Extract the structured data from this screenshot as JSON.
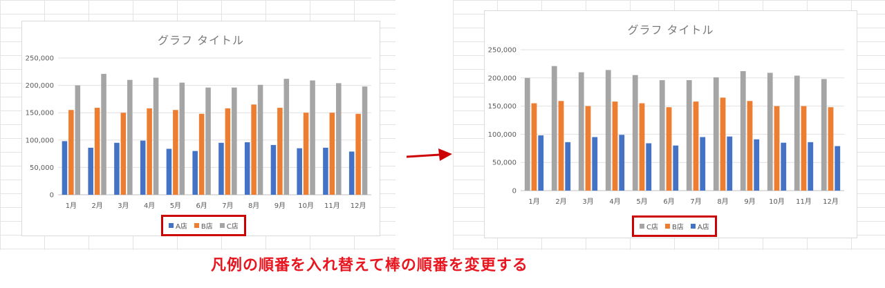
{
  "caption": "凡例の順番を入れ替えて棒の順番を変更する",
  "colors": {
    "a": "#4472c4",
    "b": "#ed7d31",
    "c": "#a5a5a5",
    "highlight": "#cc0000",
    "arrow": "#cc0000"
  },
  "chart_data": [
    {
      "type": "bar",
      "title": "グラフ タイトル",
      "categories": [
        "1月",
        "2月",
        "3月",
        "4月",
        "5月",
        "6月",
        "7月",
        "8月",
        "9月",
        "10月",
        "11月",
        "12月"
      ],
      "series": [
        {
          "name": "A店",
          "color": "#4472c4",
          "values": [
            98000,
            86000,
            95000,
            99000,
            84000,
            80000,
            95000,
            96000,
            91000,
            85000,
            86000,
            79000
          ]
        },
        {
          "name": "B店",
          "color": "#ed7d31",
          "values": [
            155000,
            159000,
            150000,
            158000,
            155000,
            148000,
            158000,
            165000,
            159000,
            150000,
            150000,
            148000
          ]
        },
        {
          "name": "C店",
          "color": "#a5a5a5",
          "values": [
            200000,
            221000,
            210000,
            214000,
            205000,
            196000,
            196000,
            201000,
            212000,
            209000,
            204000,
            198000
          ]
        }
      ],
      "ylim": [
        0,
        250000
      ],
      "yticks": [
        "0",
        "50,000",
        "100,000",
        "150,000",
        "200,000",
        "250,000"
      ],
      "legend": [
        "A店",
        "B店",
        "C店"
      ],
      "legend_position": "bottom",
      "grid": true
    },
    {
      "type": "bar",
      "title": "グラフ タイトル",
      "categories": [
        "1月",
        "2月",
        "3月",
        "4月",
        "5月",
        "6月",
        "7月",
        "8月",
        "9月",
        "10月",
        "11月",
        "12月"
      ],
      "series": [
        {
          "name": "C店",
          "color": "#a5a5a5",
          "values": [
            200000,
            221000,
            210000,
            214000,
            205000,
            196000,
            196000,
            201000,
            212000,
            209000,
            204000,
            198000
          ]
        },
        {
          "name": "B店",
          "color": "#ed7d31",
          "values": [
            155000,
            159000,
            150000,
            158000,
            155000,
            148000,
            158000,
            165000,
            159000,
            150000,
            150000,
            148000
          ]
        },
        {
          "name": "A店",
          "color": "#4472c4",
          "values": [
            98000,
            86000,
            95000,
            99000,
            84000,
            80000,
            95000,
            96000,
            91000,
            85000,
            86000,
            79000
          ]
        }
      ],
      "ylim": [
        0,
        250000
      ],
      "yticks": [
        "0",
        "50,000",
        "100,000",
        "150,000",
        "200,000",
        "250,000"
      ],
      "legend": [
        "C店",
        "B店",
        "A店"
      ],
      "legend_position": "bottom",
      "grid": true
    }
  ]
}
